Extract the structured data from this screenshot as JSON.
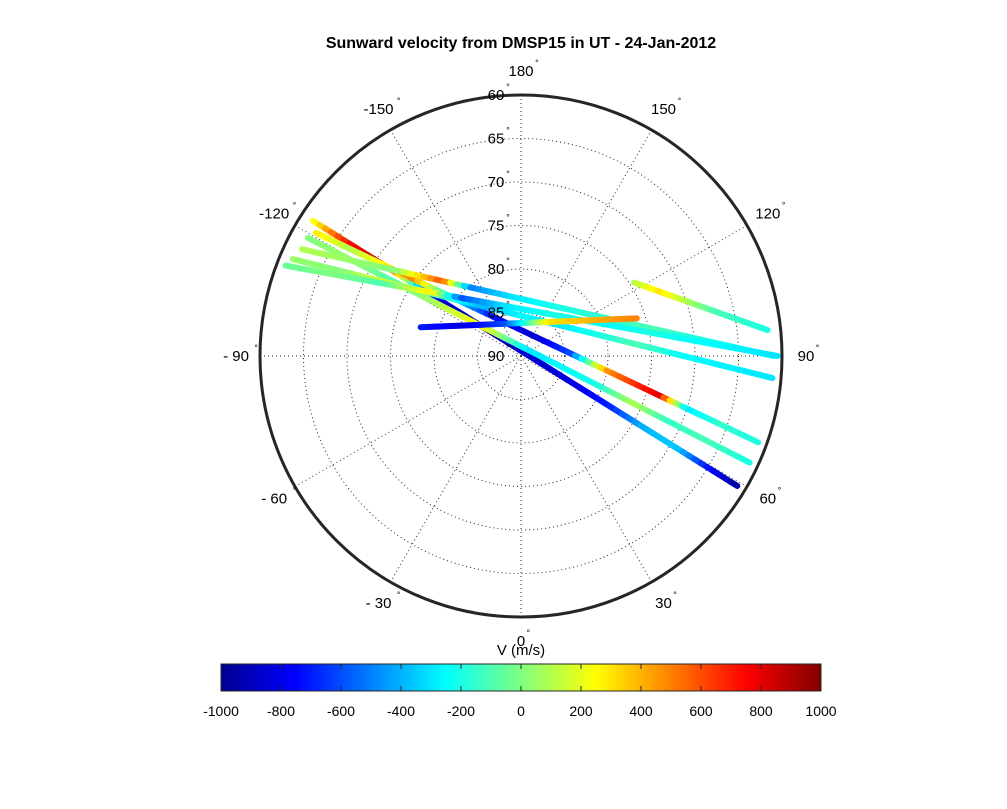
{
  "chart_data": {
    "type": "scatter",
    "projection": "polar",
    "title": "Sunward velocity from DMSP15 in UT - 24-Jan-2012",
    "angular_axis": {
      "unit": "°",
      "ticks": [
        {
          "value": 0,
          "label": "0"
        },
        {
          "value": 30,
          "label": "30"
        },
        {
          "value": 60,
          "label": "60"
        },
        {
          "value": 90,
          "label": "90"
        },
        {
          "value": 120,
          "label": "120"
        },
        {
          "value": 150,
          "label": "150"
        },
        {
          "value": 180,
          "label": "180"
        },
        {
          "value": -150,
          "label": "-150"
        },
        {
          "value": -120,
          "label": "-120"
        },
        {
          "value": -90,
          "label": "- 90"
        },
        {
          "value": -60,
          "label": "- 60"
        },
        {
          "value": -30,
          "label": "- 30"
        }
      ]
    },
    "radial_axis": {
      "range": [
        90,
        60
      ],
      "unit": "°",
      "ticks": [
        {
          "value": 60,
          "label": "60"
        },
        {
          "value": 65,
          "label": "65"
        },
        {
          "value": 70,
          "label": "70"
        },
        {
          "value": 75,
          "label": "75"
        },
        {
          "value": 80,
          "label": "80"
        },
        {
          "value": 85,
          "label": "85"
        },
        {
          "value": 90,
          "label": "90"
        }
      ]
    },
    "grid": true,
    "colorbar": {
      "label": "V (m/s)",
      "colormap": "jet",
      "range": [
        -1000,
        1000
      ],
      "ticks": [
        "-1000",
        "-800",
        "-600",
        "-400",
        "-200",
        "0",
        "200",
        "400",
        "600",
        "800",
        "1000"
      ]
    },
    "tracks": [
      {
        "start": {
          "angle": -123,
          "lat": 61.5
        },
        "end": {
          "angle": 59,
          "lat": 61.0
        },
        "samples": [
          {
            "t": 0.0,
            "v": 200
          },
          {
            "t": 0.05,
            "v": 520
          },
          {
            "t": 0.1,
            "v": 780
          },
          {
            "t": 0.15,
            "v": 820
          },
          {
            "t": 0.2,
            "v": 400
          },
          {
            "t": 0.25,
            "v": -300
          },
          {
            "t": 0.3,
            "v": -800
          },
          {
            "t": 0.4,
            "v": -900
          },
          {
            "t": 0.5,
            "v": -850
          },
          {
            "t": 0.6,
            "v": -820
          },
          {
            "t": 0.7,
            "v": -700
          },
          {
            "t": 0.78,
            "v": -400
          },
          {
            "t": 0.86,
            "v": -350
          },
          {
            "t": 0.93,
            "v": -700
          },
          {
            "t": 1.0,
            "v": -950
          }
        ]
      },
      {
        "start": {
          "angle": -121,
          "lat": 62.5
        },
        "end": {
          "angle": 70,
          "lat": 61.0
        },
        "samples": [
          {
            "t": 0.0,
            "v": 300
          },
          {
            "t": 0.08,
            "v": 100
          },
          {
            "t": 0.15,
            "v": 250
          },
          {
            "t": 0.22,
            "v": 500
          },
          {
            "t": 0.3,
            "v": -200
          },
          {
            "t": 0.4,
            "v": -700
          },
          {
            "t": 0.5,
            "v": -850
          },
          {
            "t": 0.58,
            "v": -600
          },
          {
            "t": 0.66,
            "v": 450
          },
          {
            "t": 0.72,
            "v": 650
          },
          {
            "t": 0.78,
            "v": 800
          },
          {
            "t": 0.84,
            "v": -300
          },
          {
            "t": 0.92,
            "v": -150
          },
          {
            "t": 1.0,
            "v": -200
          }
        ]
      },
      {
        "start": {
          "angle": -119,
          "lat": 62.0
        },
        "end": {
          "angle": 65,
          "lat": 61.0
        },
        "samples": [
          {
            "t": 0.0,
            "v": 0
          },
          {
            "t": 0.1,
            "v": 50
          },
          {
            "t": 0.2,
            "v": -100
          },
          {
            "t": 0.3,
            "v": 100
          },
          {
            "t": 0.4,
            "v": 250
          },
          {
            "t": 0.5,
            "v": -300
          },
          {
            "t": 0.58,
            "v": -250
          },
          {
            "t": 0.66,
            "v": -200
          },
          {
            "t": 0.74,
            "v": 100
          },
          {
            "t": 0.82,
            "v": -150
          },
          {
            "t": 0.9,
            "v": -100
          },
          {
            "t": 1.0,
            "v": -200
          }
        ]
      },
      {
        "start": {
          "angle": -116,
          "lat": 62.0
        },
        "end": {
          "angle": 90,
          "lat": 61.0
        },
        "samples": [
          {
            "t": 0.0,
            "v": 100
          },
          {
            "t": 0.1,
            "v": 50
          },
          {
            "t": 0.2,
            "v": 0
          },
          {
            "t": 0.3,
            "v": 600
          },
          {
            "t": 0.36,
            "v": -500
          },
          {
            "t": 0.45,
            "v": -300
          },
          {
            "t": 0.55,
            "v": -200
          },
          {
            "t": 0.65,
            "v": -150
          },
          {
            "t": 0.75,
            "v": -100
          },
          {
            "t": 0.85,
            "v": -200
          },
          {
            "t": 1.0,
            "v": -250
          }
        ]
      },
      {
        "start": {
          "angle": -113,
          "lat": 61.5
        },
        "end": {
          "angle": 85,
          "lat": 61.0
        },
        "samples": [
          {
            "t": 0.0,
            "v": 50
          },
          {
            "t": 0.1,
            "v": 0
          },
          {
            "t": 0.2,
            "v": 200
          },
          {
            "t": 0.3,
            "v": -100
          },
          {
            "t": 0.4,
            "v": -400
          },
          {
            "t": 0.48,
            "v": -250
          },
          {
            "t": 0.56,
            "v": -300
          },
          {
            "t": 0.64,
            "v": -200
          },
          {
            "t": 0.72,
            "v": -100
          },
          {
            "t": 0.82,
            "v": -250
          },
          {
            "t": 1.0,
            "v": -300
          }
        ]
      },
      {
        "start": {
          "angle": -111,
          "lat": 61.0
        },
        "end": {
          "angle": 90,
          "lat": 60.5
        },
        "samples": [
          {
            "t": 0.0,
            "v": -50
          },
          {
            "t": 0.1,
            "v": 0
          },
          {
            "t": 0.2,
            "v": -100
          },
          {
            "t": 0.3,
            "v": 300
          },
          {
            "t": 0.36,
            "v": -600
          },
          {
            "t": 0.45,
            "v": -300
          },
          {
            "t": 0.55,
            "v": -200
          },
          {
            "t": 0.65,
            "v": -250
          },
          {
            "t": 0.75,
            "v": -200
          },
          {
            "t": 0.85,
            "v": -250
          },
          {
            "t": 1.0,
            "v": -300
          }
        ]
      },
      {
        "start": {
          "angle": -106,
          "lat": 78.0
        },
        "end": {
          "angle": 108,
          "lat": 76.0
        },
        "samples": [
          {
            "t": 0.0,
            "v": -700
          },
          {
            "t": 0.2,
            "v": -800
          },
          {
            "t": 0.4,
            "v": -600
          },
          {
            "t": 0.6,
            "v": 300
          },
          {
            "t": 0.8,
            "v": 400
          },
          {
            "t": 1.0,
            "v": 500
          }
        ]
      },
      {
        "start": {
          "angle": 123,
          "lat": 74.5
        },
        "end": {
          "angle": 96,
          "lat": 61.5
        },
        "samples": [
          {
            "t": 0.0,
            "v": 100
          },
          {
            "t": 0.2,
            "v": 300
          },
          {
            "t": 0.4,
            "v": 100
          },
          {
            "t": 0.6,
            "v": -100
          },
          {
            "t": 0.8,
            "v": -150
          },
          {
            "t": 1.0,
            "v": -200
          }
        ]
      }
    ]
  }
}
